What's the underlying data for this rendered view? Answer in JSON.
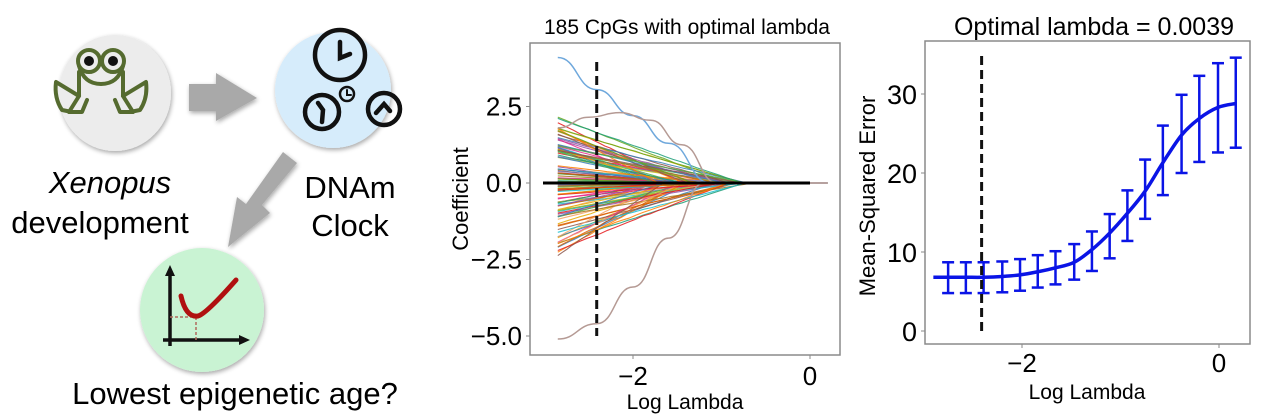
{
  "schematic": {
    "frog_caption_italic": "Xenopus",
    "frog_caption": "development",
    "clock_caption_line1": "DNAm",
    "clock_caption_line2": "Clock",
    "result_caption": "Lowest epigenetic age?",
    "icons": [
      "frog-icon",
      "clocks-icon",
      "minimum-curve-icon",
      "arrow-right-icon",
      "arrow-down-left-icon"
    ],
    "colors": {
      "frog_circle": "#ececec",
      "frog_stroke": "#556b2f",
      "clock_circle": "#d6ecfb",
      "graph_circle": "#c9f3d3",
      "curve": "#b01010",
      "arrow": "#a9a9a9"
    }
  },
  "chart_data": [
    {
      "type": "line",
      "title": "185 CpGs with optimal lambda",
      "xlabel": "Log Lambda",
      "ylabel": "Coefficient",
      "xlim": [
        -3.1,
        0.35
      ],
      "ylim": [
        -5.5,
        4.6
      ],
      "xticks": [
        -2,
        0
      ],
      "xtick_labels": [
        "−2",
        "0"
      ],
      "yticks": [
        2.5,
        0.0,
        -2.5,
        -5.0
      ],
      "ytick_labels": [
        "2.5",
        "0.0",
        "−2.5",
        "−5.0"
      ],
      "optimal_log_lambda": -2.41,
      "grid": false,
      "legend": "none",
      "n_paths_displayed": 185,
      "highlighted_series": [
        {
          "name": "path-top-blue",
          "color": "#6fa8dc",
          "x": [
            -2.85,
            -2.41,
            -2.0,
            -1.6,
            -1.13,
            0.2
          ],
          "values": [
            4.1,
            3.05,
            2.2,
            1.3,
            0.0,
            0.0
          ]
        },
        {
          "name": "path-brown-arch",
          "color": "#b59a94",
          "x": [
            -2.85,
            -2.5,
            -2.15,
            -1.8,
            -1.45,
            -1.05,
            0.2
          ],
          "values": [
            1.8,
            2.15,
            2.3,
            2.05,
            1.25,
            0.0,
            0.0
          ]
        },
        {
          "name": "path-bottom-brown",
          "color": "#b59a94",
          "x": [
            -2.85,
            -2.41,
            -2.0,
            -1.6,
            -1.2,
            0.2
          ],
          "values": [
            -5.1,
            -4.6,
            -3.4,
            -1.8,
            0.0,
            0.0
          ]
        }
      ],
      "path_start_range": [
        -2.45,
        2.25
      ],
      "path_zero_range_log_lambda": [
        -1.6,
        -0.6
      ]
    },
    {
      "type": "line",
      "title": "Optimal lambda = 0.0039",
      "xlabel": "Log Lambda",
      "ylabel": "Mean-Squared Error",
      "xlim": [
        -3.0,
        0.32
      ],
      "ylim": [
        -1.6,
        36.8
      ],
      "xticks": [
        -2,
        0
      ],
      "xtick_labels": [
        "−2",
        "0"
      ],
      "yticks": [
        0,
        10,
        20,
        30
      ],
      "ytick_labels": [
        "0",
        "10",
        "20",
        "30"
      ],
      "optimal_log_lambda": -2.41,
      "grid": false,
      "legend": "none",
      "color": "#0a14e6",
      "series": [
        {
          "name": "MSE",
          "x": [
            -2.75,
            -2.57,
            -2.39,
            -2.2,
            -2.02,
            -1.84,
            -1.66,
            -1.47,
            -1.29,
            -1.11,
            -0.93,
            -0.75,
            -0.57,
            -0.38,
            -0.2,
            -0.01,
            0.17
          ],
          "values": [
            6.8,
            6.8,
            6.8,
            6.9,
            7.1,
            7.5,
            8.0,
            8.7,
            10.3,
            12.4,
            14.9,
            17.7,
            21.3,
            24.8,
            26.9,
            28.3,
            28.8
          ],
          "lower": [
            4.8,
            4.8,
            4.8,
            4.9,
            5.1,
            5.5,
            5.9,
            6.5,
            7.6,
            9.2,
            11.4,
            14.2,
            17.2,
            20.0,
            21.4,
            22.6,
            23.2
          ],
          "upper": [
            8.7,
            8.7,
            8.7,
            8.8,
            9.1,
            9.6,
            10.1,
            11.0,
            12.6,
            14.8,
            17.8,
            21.7,
            26.0,
            29.9,
            32.3,
            33.9,
            34.6
          ]
        }
      ]
    }
  ]
}
